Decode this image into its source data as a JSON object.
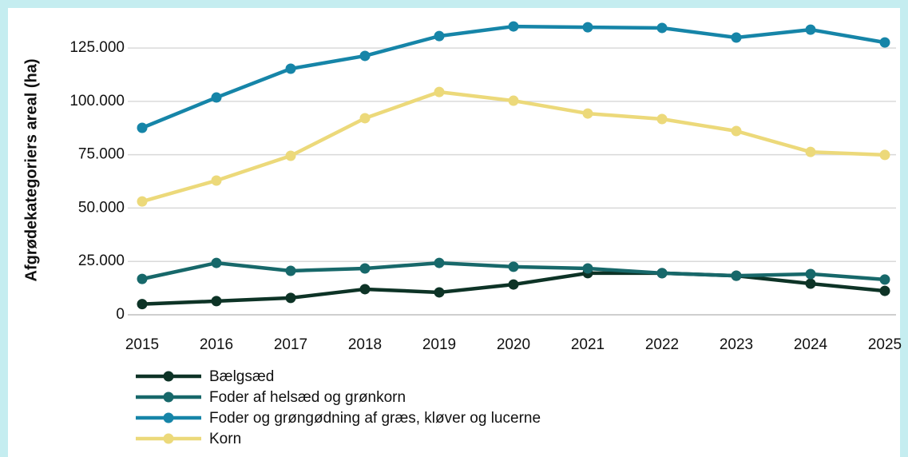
{
  "chart_data": {
    "type": "line",
    "y_label": "Afgrødekategoriers areal (ha)",
    "categories": [
      "2015",
      "2016",
      "2017",
      "2018",
      "2019",
      "2020",
      "2021",
      "2022",
      "2023",
      "2024",
      "2025"
    ],
    "series": [
      {
        "name": "Bælgsæd",
        "color": "#0d3326",
        "values": [
          5000,
          6400,
          7900,
          12000,
          10500,
          14200,
          19500,
          19500,
          18300,
          14600,
          11200
        ]
      },
      {
        "name": "Foder af helsæd og grønkorn",
        "color": "#17686a",
        "values": [
          16800,
          24300,
          20600,
          21700,
          24300,
          22500,
          21700,
          19500,
          18300,
          19100,
          16500
        ]
      },
      {
        "name": "Foder og grøngødning af græs, kløver og lucerne",
        "color": "#1685a8",
        "values": [
          87600,
          101800,
          115300,
          121300,
          130600,
          135100,
          134700,
          134400,
          129900,
          133600,
          127600
        ]
      },
      {
        "name": "Korn",
        "color": "#ecd97a",
        "values": [
          53100,
          62900,
          74500,
          92100,
          104400,
          100300,
          94300,
          91700,
          86100,
          76300,
          74900
        ]
      }
    ],
    "ylim": [
      0,
      140000
    ],
    "yticks": [
      0,
      {
        "value": 25000,
        "label": "25.000"
      },
      {
        "value": 50000,
        "label": "50.000"
      },
      {
        "value": 75000,
        "label": "75.000"
      },
      {
        "value": 100000,
        "label": "100.000"
      },
      {
        "value": 125000,
        "label": "125.000"
      }
    ],
    "grid": true,
    "legend": "bottom-left"
  }
}
